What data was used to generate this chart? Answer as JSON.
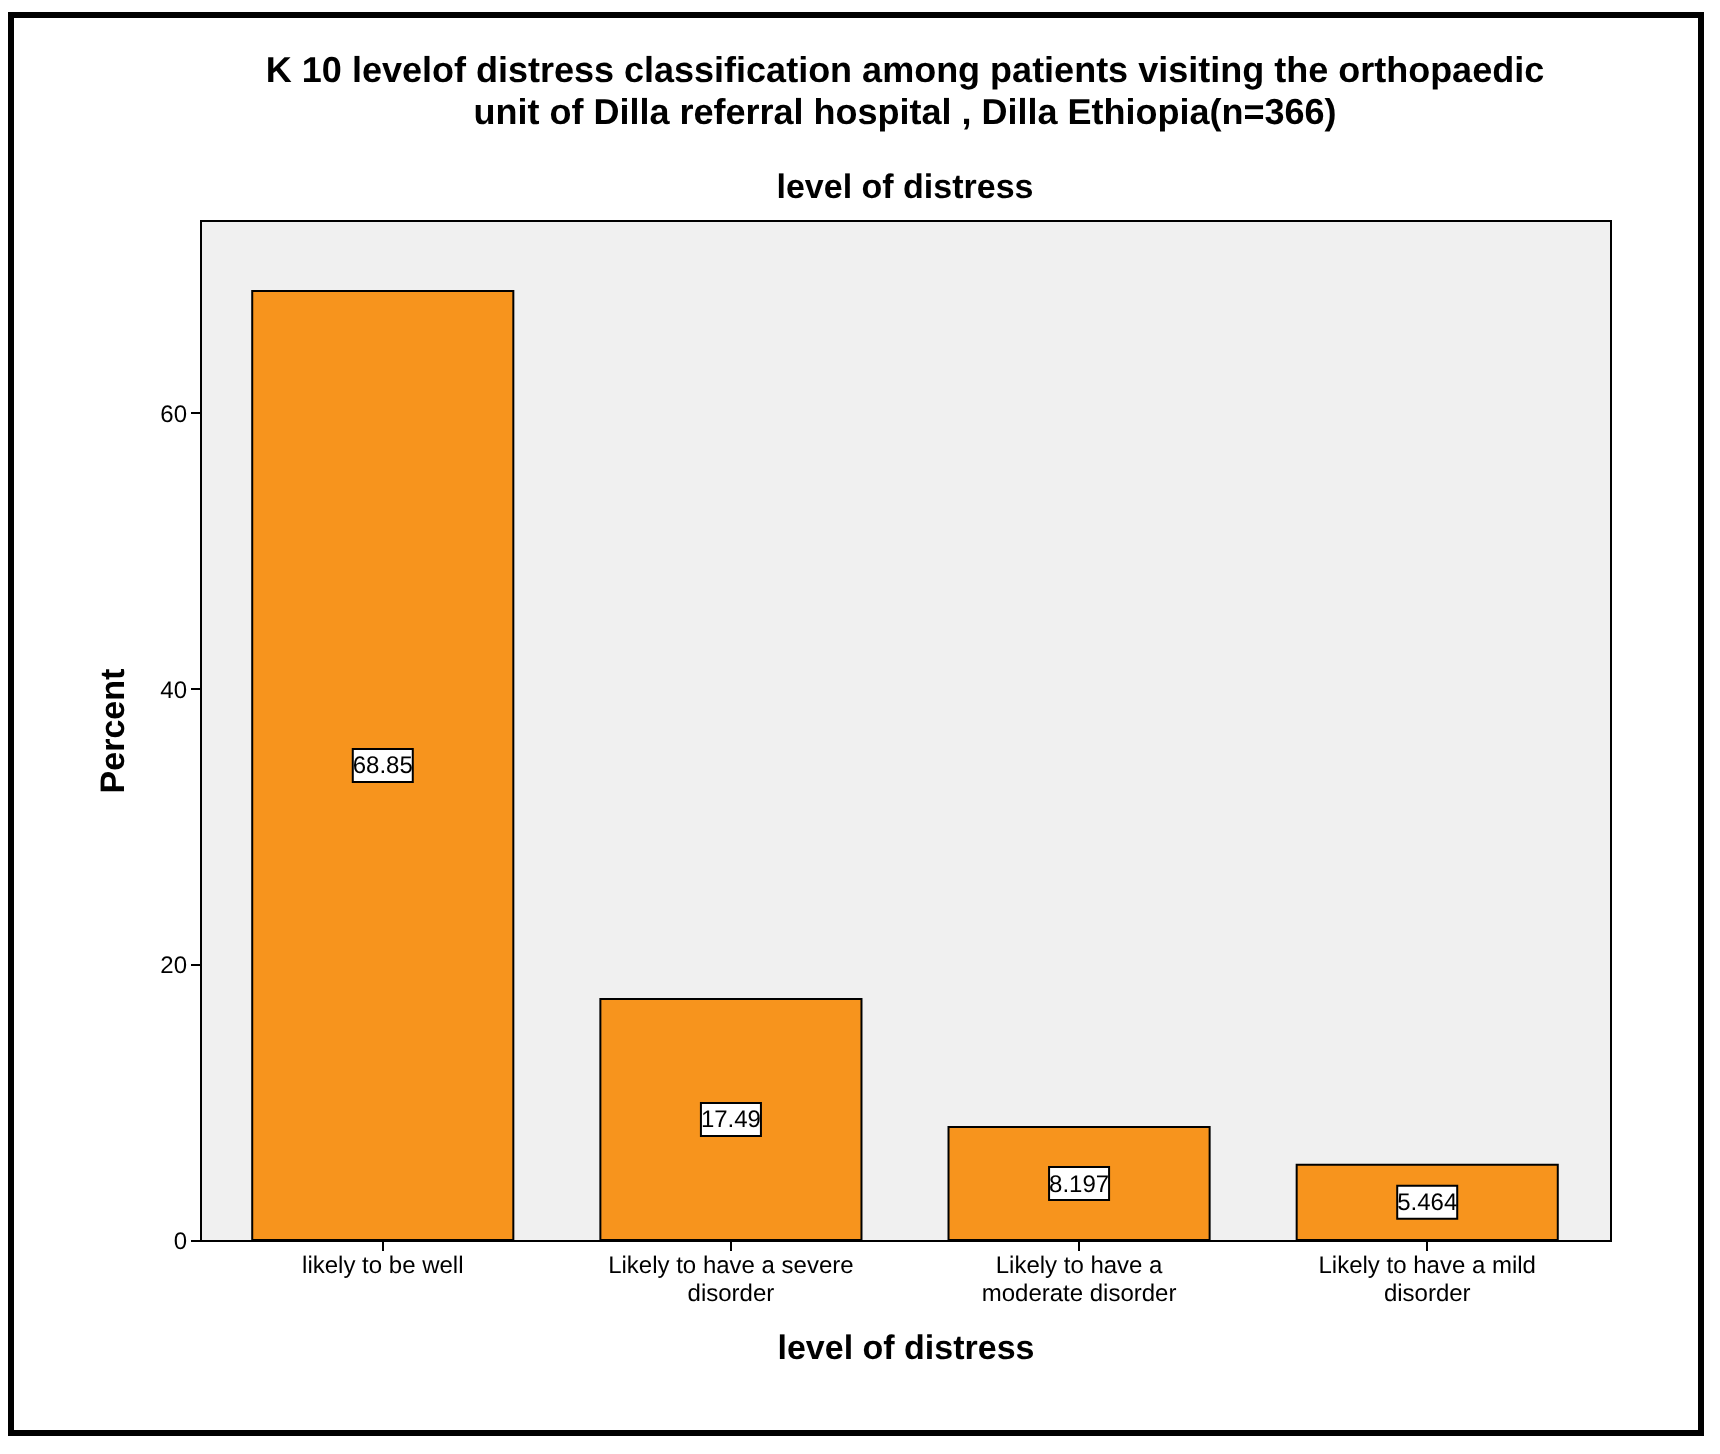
{
  "chart_data": {
    "type": "bar",
    "title": "K 10 levelof distress classification among patients visiting the orthopaedic unit of Dilla referral hospital , Dilla  Ethiopia(n=366)",
    "subtitle": "level of distress",
    "xlabel": "level of distress",
    "ylabel": "Percent",
    "categories": [
      "likely to be well",
      "Likely to have a severe disorder",
      "Likely to have a moderate disorder",
      "Likely to have a mild disorder"
    ],
    "values": [
      68.85,
      17.49,
      8.197,
      5.464
    ],
    "color": "#f7941d",
    "ylim": [
      0,
      74
    ],
    "yticks": [
      0,
      20,
      40,
      60
    ],
    "grid": false,
    "data_labels": true
  }
}
